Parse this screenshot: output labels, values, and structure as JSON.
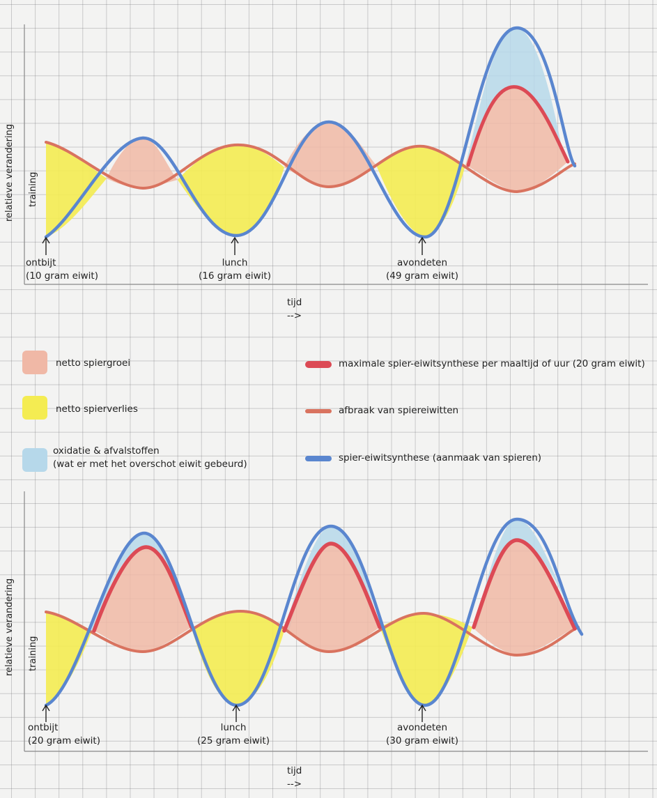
{
  "top_panel": {
    "ylabel": "relatieve verandering",
    "training_label": "training",
    "xlabel": "tijd",
    "arrow": "-->",
    "meals": [
      {
        "name": "ontbijt",
        "protein": "(10 gram eiwit)"
      },
      {
        "name": "lunch",
        "protein": "(16 gram eiwit)"
      },
      {
        "name": "avondeten",
        "protein": "(49 gram eiwit)"
      }
    ]
  },
  "bottom_panel": {
    "ylabel": "relatieve verandering",
    "training_label": "training",
    "xlabel": "tijd",
    "arrow": "-->",
    "meals": [
      {
        "name": "ontbijt",
        "protein": "(20 gram eiwit)"
      },
      {
        "name": "lunch",
        "protein": "(25 gram eiwit)"
      },
      {
        "name": "avondeten",
        "protein": "(30 gram eiwit)"
      }
    ]
  },
  "legend": {
    "fills": [
      {
        "label": "netto spiergroei",
        "color": "#f0b8a6"
      },
      {
        "label": "netto spierverlies",
        "color": "#f4ec52"
      },
      {
        "label": "oxidatie & afvalstoffen",
        "label2": "(wat er met het overschot eiwit gebeurd)",
        "color": "#b6d8ea"
      }
    ],
    "lines": [
      {
        "label": "maximale spier-eiwitsynthese per maaltijd of uur (20 gram eiwit)",
        "color": "#dc4a55"
      },
      {
        "label": "afbraak van spiereiwitten",
        "color": "#d9735f"
      },
      {
        "label": "spier-eiwitsynthese (aanmaak van spieren)",
        "color": "#5a86cf"
      }
    ]
  }
}
